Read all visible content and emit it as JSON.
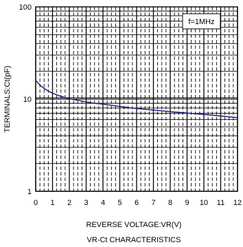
{
  "chart_data": {
    "type": "line",
    "title": "VR-Ct CHARACTERISTICS",
    "xlabel": "REVERSE VOLTAGE:VR(V)",
    "ylabel": "TERMINALS:Ct(pF)",
    "annotation": "f=1MHz",
    "xlim": [
      0,
      12
    ],
    "ylim": [
      1,
      100
    ],
    "yscale": "log",
    "x_ticks": [
      "0",
      "1",
      "2",
      "3",
      "4",
      "5",
      "6",
      "7",
      "8",
      "9",
      "10",
      "11",
      "12"
    ],
    "y_ticks": [
      {
        "value": 1,
        "label": "1"
      },
      {
        "value": 10,
        "label": "10"
      },
      {
        "value": 100,
        "label": "100"
      }
    ],
    "grid": true,
    "series_color": "#1a237e",
    "series": [
      {
        "x": [
          0,
          0.25,
          0.5,
          0.75,
          1,
          1.5,
          2,
          2.5,
          3,
          3.5,
          4,
          5,
          6,
          7,
          8,
          9,
          10,
          11,
          12
        ],
        "y": [
          16,
          14.2,
          13,
          12.2,
          11.6,
          10.7,
          10.1,
          9.7,
          9.3,
          9.0,
          8.8,
          8.3,
          7.9,
          7.6,
          7.3,
          7.05,
          6.8,
          6.55,
          6.3
        ]
      }
    ]
  }
}
